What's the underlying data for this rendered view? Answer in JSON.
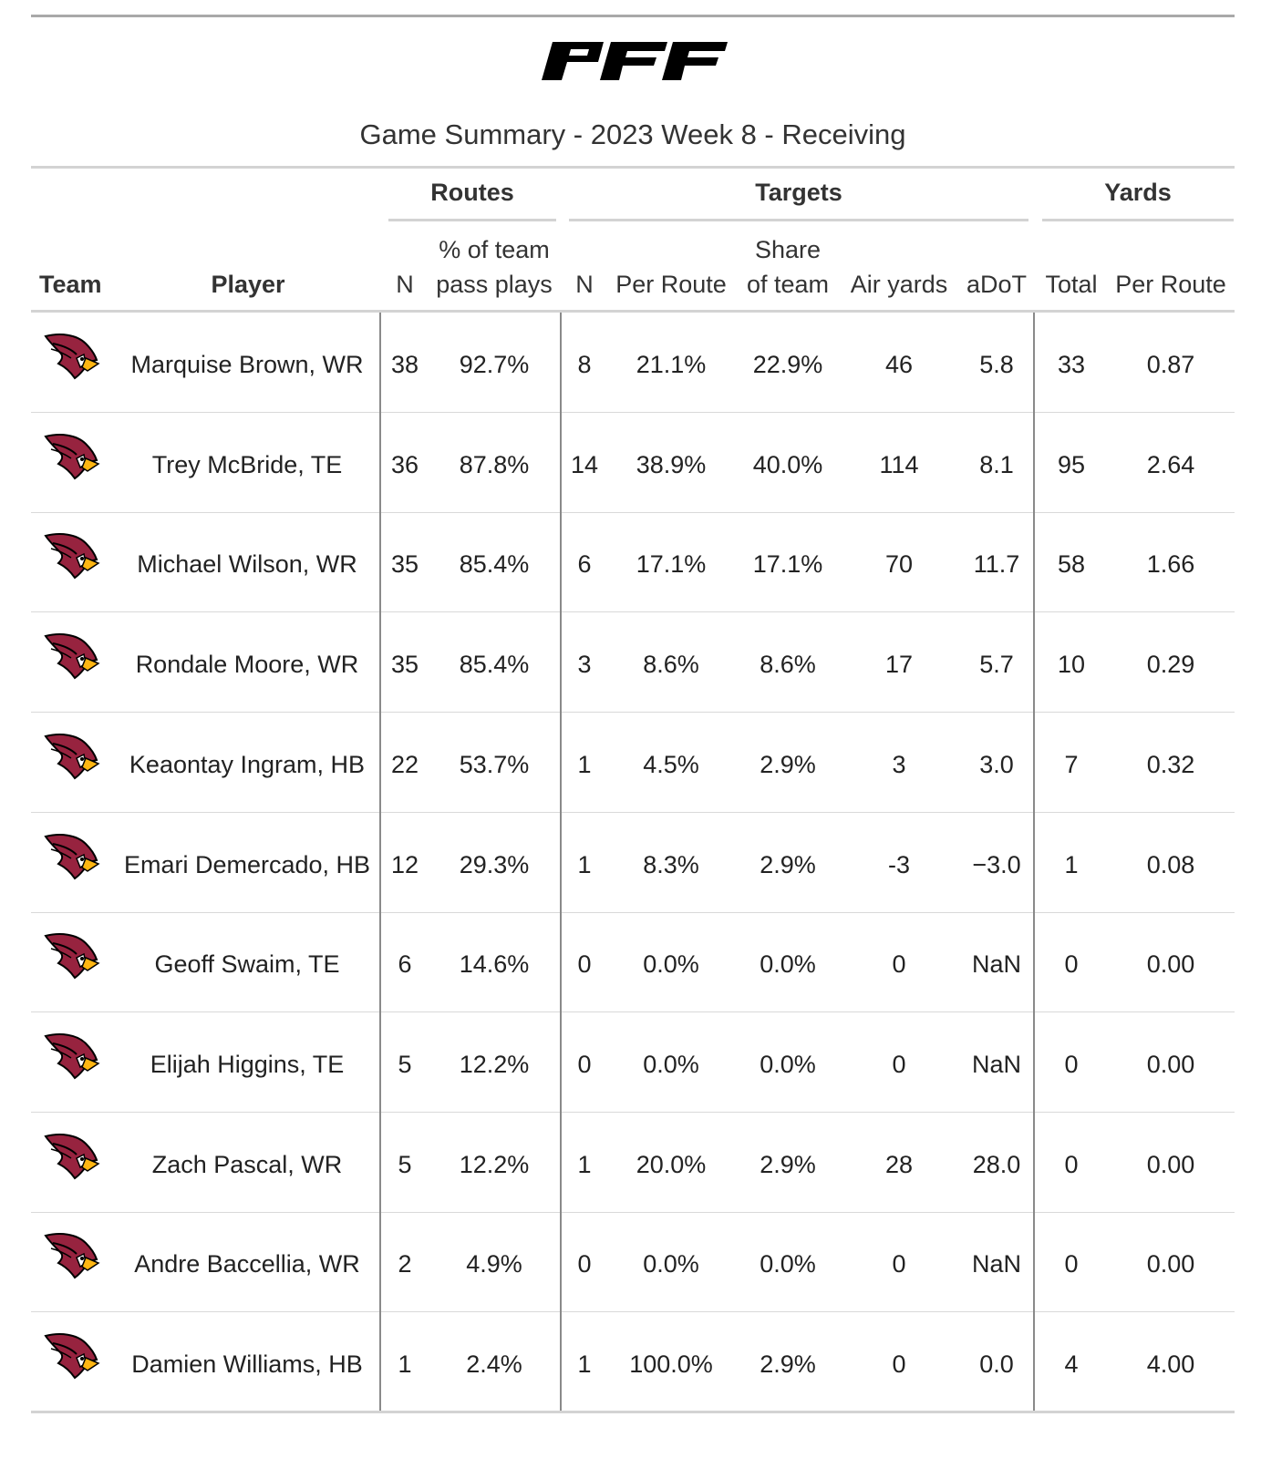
{
  "logo_text": "PFF",
  "title": "Game Summary - 2023 Week 8 - Receiving",
  "spanners": {
    "routes": "Routes",
    "targets": "Targets",
    "yards": "Yards"
  },
  "columns": {
    "team": "Team",
    "player": "Player",
    "routes_n": "N",
    "routes_pct_line1": "% of team",
    "routes_pct_line2": "pass plays",
    "targets_n": "N",
    "targets_per_route": "Per Route",
    "share_line1": "Share",
    "share_line2": "of team",
    "air_yards": "Air yards",
    "adot": "aDoT",
    "yards_total": "Total",
    "yards_per_route": "Per Route"
  },
  "team_logo_icon": "arizona-cardinals-logo-icon",
  "colors": {
    "cardinal_red": "#97233F",
    "beak_yellow": "#FFB612",
    "rule_gray": "#d3d3d3",
    "divider_gray": "#8a8a8a"
  },
  "chart_data": {
    "type": "table",
    "columns": [
      "Team",
      "Player",
      "Routes N",
      "Routes % of team pass plays",
      "Targets N",
      "Targets Per Route",
      "Targets Share of team",
      "Air yards",
      "aDoT",
      "Yards Total",
      "Yards Per Route"
    ],
    "rows": [
      {
        "player": "Marquise Brown, WR",
        "routes_n": "38",
        "routes_pct": "92.7%",
        "targets_n": "8",
        "targets_per_route": "21.1%",
        "share": "22.9%",
        "air_yards": "46",
        "adot": "5.8",
        "yards_total": "33",
        "yards_per_route": "0.87"
      },
      {
        "player": "Trey McBride, TE",
        "routes_n": "36",
        "routes_pct": "87.8%",
        "targets_n": "14",
        "targets_per_route": "38.9%",
        "share": "40.0%",
        "air_yards": "114",
        "adot": "8.1",
        "yards_total": "95",
        "yards_per_route": "2.64"
      },
      {
        "player": "Michael Wilson, WR",
        "routes_n": "35",
        "routes_pct": "85.4%",
        "targets_n": "6",
        "targets_per_route": "17.1%",
        "share": "17.1%",
        "air_yards": "70",
        "adot": "11.7",
        "yards_total": "58",
        "yards_per_route": "1.66"
      },
      {
        "player": "Rondale Moore, WR",
        "routes_n": "35",
        "routes_pct": "85.4%",
        "targets_n": "3",
        "targets_per_route": "8.6%",
        "share": "8.6%",
        "air_yards": "17",
        "adot": "5.7",
        "yards_total": "10",
        "yards_per_route": "0.29"
      },
      {
        "player": "Keaontay Ingram, HB",
        "routes_n": "22",
        "routes_pct": "53.7%",
        "targets_n": "1",
        "targets_per_route": "4.5%",
        "share": "2.9%",
        "air_yards": "3",
        "adot": "3.0",
        "yards_total": "7",
        "yards_per_route": "0.32"
      },
      {
        "player": "Emari Demercado, HB",
        "routes_n": "12",
        "routes_pct": "29.3%",
        "targets_n": "1",
        "targets_per_route": "8.3%",
        "share": "2.9%",
        "air_yards": "-3",
        "adot": "−3.0",
        "yards_total": "1",
        "yards_per_route": "0.08"
      },
      {
        "player": "Geoff Swaim, TE",
        "routes_n": "6",
        "routes_pct": "14.6%",
        "targets_n": "0",
        "targets_per_route": "0.0%",
        "share": "0.0%",
        "air_yards": "0",
        "adot": "NaN",
        "yards_total": "0",
        "yards_per_route": "0.00"
      },
      {
        "player": "Elijah Higgins, TE",
        "routes_n": "5",
        "routes_pct": "12.2%",
        "targets_n": "0",
        "targets_per_route": "0.0%",
        "share": "0.0%",
        "air_yards": "0",
        "adot": "NaN",
        "yards_total": "0",
        "yards_per_route": "0.00"
      },
      {
        "player": "Zach Pascal, WR",
        "routes_n": "5",
        "routes_pct": "12.2%",
        "targets_n": "1",
        "targets_per_route": "20.0%",
        "share": "2.9%",
        "air_yards": "28",
        "adot": "28.0",
        "yards_total": "0",
        "yards_per_route": "0.00"
      },
      {
        "player": "Andre Baccellia, WR",
        "routes_n": "2",
        "routes_pct": "4.9%",
        "targets_n": "0",
        "targets_per_route": "0.0%",
        "share": "0.0%",
        "air_yards": "0",
        "adot": "NaN",
        "yards_total": "0",
        "yards_per_route": "0.00"
      },
      {
        "player": "Damien Williams, HB",
        "routes_n": "1",
        "routes_pct": "2.4%",
        "targets_n": "1",
        "targets_per_route": "100.0%",
        "share": "2.9%",
        "air_yards": "0",
        "adot": "0.0",
        "yards_total": "4",
        "yards_per_route": "4.00"
      }
    ]
  }
}
